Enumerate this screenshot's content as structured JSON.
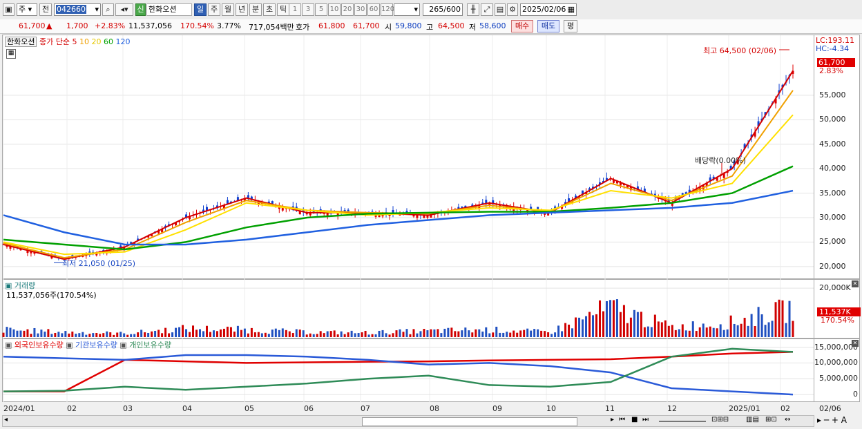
{
  "toolbar": {
    "market": "주",
    "prev": "전",
    "code": "042660",
    "credit_badge": "신",
    "stock_name": "한화오션",
    "periods": [
      "일",
      "주",
      "월",
      "년",
      "분",
      "초",
      "틱"
    ],
    "selected_period": "일",
    "intervals": [
      "1",
      "3",
      "5",
      "10",
      "20",
      "30",
      "60",
      "120"
    ],
    "count": "265",
    "total": "/600",
    "date": "2025/02/06"
  },
  "quote": {
    "price": "61,700",
    "arrow": "▲",
    "change": "1,700",
    "change_pct": "+2.83%",
    "volume": "11,537,056",
    "volume_ratio": "170.54%",
    "turnover": "3.77%",
    "amount": "717,054백만",
    "hoga_label": "호가",
    "ask": "61,800",
    "bid": "61,700",
    "open_label": "시",
    "open": "59,800",
    "high_label": "고",
    "high": "64,500",
    "low_label": "저",
    "low": "58,600",
    "buy": "매수",
    "sell": "매도",
    "eval": "평"
  },
  "price_panel": {
    "legend_name": "한화오션",
    "legend_series": "종가 단순",
    "ma_periods": [
      "5",
      "10",
      "20",
      "60",
      "120"
    ],
    "lc": "LC:193.11",
    "hc": "HC:-4.34",
    "current_tag": "61,700",
    "current_pct": "2.83%",
    "high_note": "최고 64,500 (02/06)",
    "low_note": "최저 21,050 (01/25)",
    "dividend_note": "배당락(0.00%)"
  },
  "volume_panel": {
    "title": "거래량",
    "value": "11,537,056주(170.54%)",
    "tag": "11,537K",
    "tag_pct": "170.54%"
  },
  "holding_panel": {
    "foreign": "외국인보유수량",
    "inst": "기관보유수량",
    "indiv": "개인보유수량"
  },
  "colors": {
    "ma5": "#d40000",
    "ma10": "#f0a000",
    "ma20": "#ffe000",
    "ma60": "#00a000",
    "ma120": "#2060e0",
    "foreign": "#e00000",
    "inst": "#2a5ad8",
    "indiv": "#2e8b57"
  },
  "chart_data": [
    {
      "type": "line",
      "x": [
        "2024/01",
        "2024/02",
        "2024/03",
        "2024/04",
        "2024/05",
        "2024/06",
        "2024/07",
        "2024/08",
        "2024/09",
        "2024/10",
        "2024/11",
        "2024/12",
        "2025/01",
        "2025/02"
      ],
      "x_tick_labels": [
        "2024/01",
        "02",
        "03",
        "04",
        "05",
        "06",
        "07",
        "08",
        "09",
        "10",
        "11",
        "12",
        "2025/01",
        "02",
        "02/06"
      ],
      "y_ticks": [
        20000,
        25000,
        30000,
        35000,
        40000,
        45000,
        50000,
        55000
      ],
      "y_tick_labels": [
        "20,000",
        "25,000",
        "30,000",
        "35,000",
        "40,000",
        "45,000",
        "50,000",
        "55,000"
      ],
      "ylim": [
        18000,
        66000
      ],
      "series": [
        {
          "name": "5",
          "values": [
            24500,
            21500,
            24000,
            30000,
            34000,
            31000,
            31000,
            30500,
            33000,
            31000,
            38000,
            33000,
            40000,
            60000
          ]
        },
        {
          "name": "10",
          "values": [
            24800,
            21800,
            23500,
            29000,
            33500,
            31500,
            31000,
            30800,
            32500,
            31200,
            37000,
            33500,
            38500,
            56000
          ]
        },
        {
          "name": "20",
          "values": [
            25000,
            22500,
            23000,
            27500,
            33000,
            31500,
            30500,
            31000,
            32000,
            31500,
            35500,
            34000,
            37000,
            51000
          ]
        },
        {
          "name": "60",
          "values": [
            25500,
            24500,
            23500,
            25000,
            28000,
            30000,
            30800,
            31000,
            31200,
            31200,
            32000,
            33000,
            35000,
            40500
          ]
        },
        {
          "name": "120",
          "values": [
            30500,
            27000,
            24500,
            24500,
            25500,
            27000,
            28500,
            29500,
            30500,
            31000,
            31500,
            32000,
            33000,
            35500
          ]
        }
      ]
    },
    {
      "type": "bar",
      "y_ticks": [
        20000000
      ],
      "y_tick_labels": [
        "20,000K"
      ],
      "values_k": [
        3000,
        2000,
        1500,
        3500,
        3000,
        2000,
        1800,
        2500,
        3000,
        2000,
        12000,
        4000,
        6000,
        11537
      ]
    },
    {
      "type": "line",
      "y_ticks": [
        0,
        5000000,
        10000000,
        15000000
      ],
      "y_tick_labels": [
        "0",
        "5,000,000",
        "10,000,000",
        "15,000,000"
      ],
      "series": [
        {
          "name": "외국인보유수량",
          "values": [
            1000000,
            1000000,
            11000000,
            10500000,
            10000000,
            10200000,
            10400000,
            10500000,
            10800000,
            11000000,
            11200000,
            12000000,
            13000000,
            13500000
          ]
        },
        {
          "name": "기관보유수량",
          "values": [
            12000000,
            11500000,
            11000000,
            12500000,
            12500000,
            12000000,
            11000000,
            9500000,
            10000000,
            9000000,
            7000000,
            2000000,
            1000000,
            0
          ]
        },
        {
          "name": "개인보유수량",
          "values": [
            1000000,
            1200000,
            2500000,
            1500000,
            2500000,
            3500000,
            5000000,
            6000000,
            3000000,
            2500000,
            4000000,
            12000000,
            14500000,
            13500000
          ]
        }
      ]
    }
  ]
}
